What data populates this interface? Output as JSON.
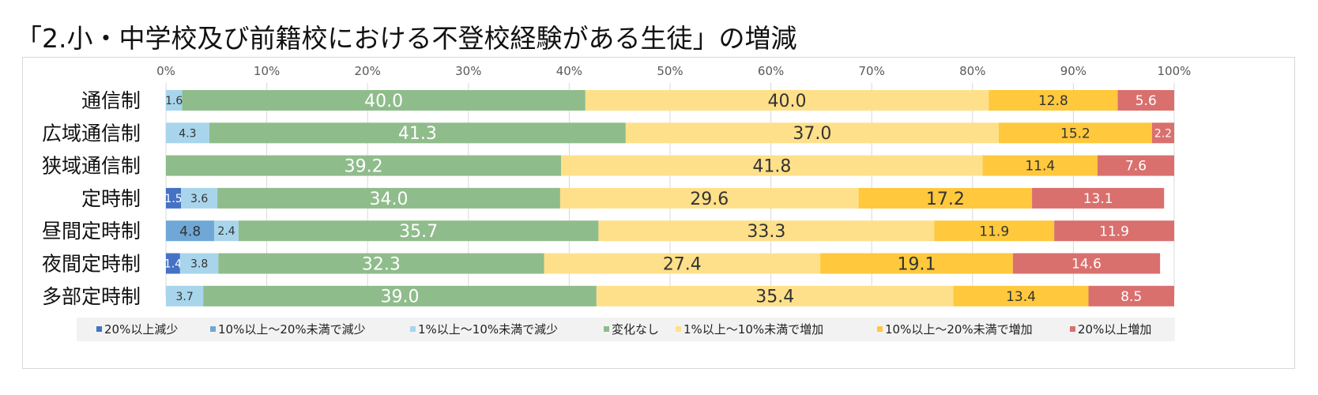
{
  "title": "「2.小・中学校及び前籍校における不登校経験がある生徒」の増減",
  "chart_data": {
    "type": "bar",
    "orientation": "horizontal",
    "stacked": true,
    "percent_stacked": true,
    "title": "「2.小・中学校及び前籍校における不登校経験がある生徒」の増減",
    "xlim": [
      0,
      100
    ],
    "x_ticks": [
      "0%",
      "10%",
      "20%",
      "30%",
      "40%",
      "50%",
      "60%",
      "70%",
      "80%",
      "90%",
      "100%"
    ],
    "grid": true,
    "legend_position": "bottom",
    "categories": [
      "通信制",
      "広域通信制",
      "狭域通信制",
      "定時制",
      "昼間定時制",
      "夜間定時制",
      "多部定時制"
    ],
    "series": [
      {
        "name": "20%以上減少",
        "color": "#4472c4",
        "values": [
          0,
          0,
          0,
          1.5,
          0,
          1.4,
          0
        ],
        "labels": [
          "",
          "",
          "",
          "1.5",
          "",
          "1.4",
          ""
        ]
      },
      {
        "name": "10%以上～20%未満で減少",
        "color": "#6fa8d6",
        "values": [
          0,
          0,
          0,
          0,
          4.8,
          0,
          0
        ],
        "labels": [
          "",
          "",
          "",
          "",
          "4.8",
          "",
          ""
        ]
      },
      {
        "name": "1%以上～10%未満で減少",
        "color": "#a8d5ec",
        "values": [
          1.6,
          4.3,
          0,
          3.6,
          2.4,
          3.8,
          3.7
        ],
        "labels": [
          "1.6",
          "4.3",
          "",
          "3.6",
          "2.4",
          "3.8",
          "3.7"
        ]
      },
      {
        "name": "変化なし",
        "color": "#8fbc8b",
        "values": [
          40.0,
          41.3,
          39.2,
          34.0,
          35.7,
          32.3,
          39.0
        ],
        "labels": [
          "40.0",
          "41.3",
          "39.2",
          "34.0",
          "35.7",
          "32.3",
          "39.0"
        ]
      },
      {
        "name": "1%以上～10%未満で増加",
        "color": "#ffe08a",
        "values": [
          40.0,
          37.0,
          41.8,
          29.6,
          33.3,
          27.4,
          35.4
        ],
        "labels": [
          "40.0",
          "37.0",
          "41.8",
          "29.6",
          "33.3",
          "27.4",
          "35.4"
        ]
      },
      {
        "name": "10%以上～20%未満で増加",
        "color": "#ffc83d",
        "values": [
          12.8,
          15.2,
          11.4,
          17.2,
          11.9,
          19.1,
          13.4
        ],
        "labels": [
          "12.8",
          "15.2",
          "11.4",
          "17.2",
          "11.9",
          "19.1",
          "13.4"
        ]
      },
      {
        "name": "20%以上増加",
        "color": "#d9706e",
        "values": [
          5.6,
          2.2,
          7.6,
          13.1,
          11.9,
          14.6,
          8.5
        ],
        "labels": [
          "5.6",
          "2.2",
          "7.6",
          "13.1",
          "11.9",
          "14.6",
          "8.5"
        ]
      }
    ]
  }
}
